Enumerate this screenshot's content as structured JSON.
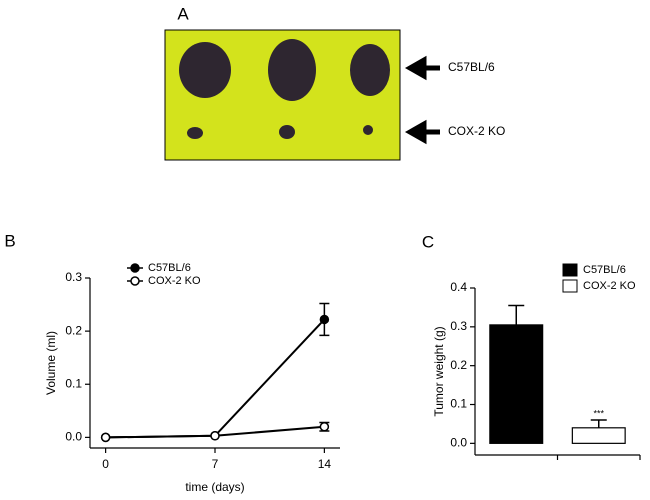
{
  "photo": {
    "panel": "A",
    "labels": [
      "C57BL/6",
      "COX-2 KO"
    ]
  },
  "chart_data": [
    {
      "type": "line",
      "panel": "B",
      "xlabel": "time (days)",
      "ylabel": "Volume (ml)",
      "x": [
        0,
        7,
        14
      ],
      "series": [
        {
          "name": "C57BL/6",
          "color": "#000000",
          "marker": "filled",
          "values": [
            0,
            0.003,
            0.222
          ],
          "errors": [
            null,
            null,
            0.03
          ]
        },
        {
          "name": "COX-2 KO",
          "color": "#000000",
          "marker": "open",
          "values": [
            0,
            0.003,
            0.02
          ],
          "errors": [
            null,
            null,
            0.008
          ]
        }
      ],
      "xlim": [
        -1,
        15
      ],
      "xticks": [
        0,
        7,
        14
      ],
      "ylim": [
        -0.02,
        0.3
      ],
      "yticks": [
        {
          "value": 0,
          "label": "0.0"
        },
        0.1,
        0.2,
        0.3
      ]
    },
    {
      "type": "bar",
      "panel": "C",
      "ylabel": "Tumor weight (g)",
      "categories": [
        null,
        null
      ],
      "series": [
        {
          "name": "C57BL/6",
          "color": "#000000",
          "values": [
            0.305,
            null
          ],
          "errors": [
            0.05,
            null
          ]
        },
        {
          "name": "COX-2 KO",
          "color": "#ffffff",
          "values": [
            null,
            0.04
          ],
          "errors": [
            null,
            0.02
          ]
        }
      ],
      "annotations": [
        {
          "text": "***",
          "category": 1
        }
      ],
      "ylim": [
        -0.03,
        0.4
      ],
      "yticks": [
        {
          "value": 0,
          "label": "0.0"
        },
        0.1,
        0.2,
        0.3,
        0.4
      ]
    }
  ]
}
